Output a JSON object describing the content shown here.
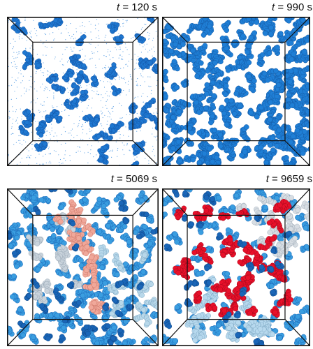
{
  "panels": [
    {
      "time_var": "t",
      "time_text": " = 120 s",
      "phase": "sparse",
      "colors": {
        "main": "#1f78d1",
        "dark": "#1456a8",
        "dust": "#3d8fe0"
      }
    },
    {
      "time_var": "t",
      "time_text": " = 990 s",
      "phase": "dense",
      "colors": {
        "main": "#1f7fd6",
        "dark": "#155ca8"
      }
    },
    {
      "time_var": "t",
      "time_text": " = 5069 s",
      "phase": "mixed",
      "colors": {
        "main": "#3a9ee0",
        "dark": "#1a66b8",
        "light": "#b8d8ea",
        "grey": "#c9d3dc",
        "salmon": "#f0a89a"
      }
    },
    {
      "time_var": "t",
      "time_text": " = 9659 s",
      "phase": "coarsened",
      "colors": {
        "main": "#3a9ee0",
        "dark": "#1a66b8",
        "light": "#b7d9ee",
        "grey": "#d7dde3",
        "red": "#e8102a"
      }
    }
  ]
}
